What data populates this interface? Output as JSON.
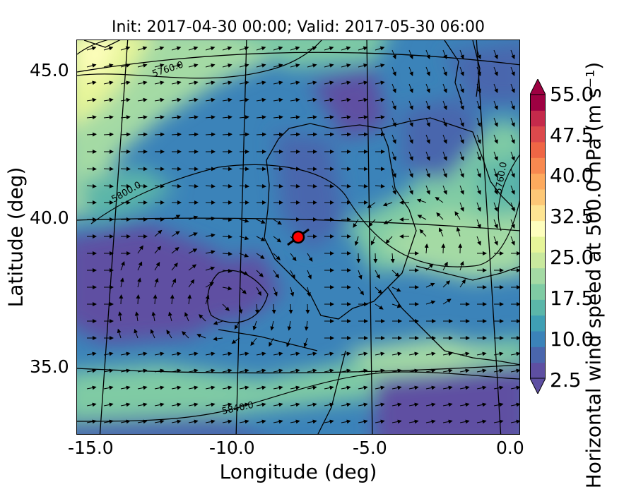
{
  "title": "Init: 2017-04-30 00:00; Valid: 2017-05-30 06:00",
  "xlabel": "Longitude (deg)",
  "ylabel": "Latitude (deg)",
  "x_ticks": [
    "-15.0",
    "-10.0",
    "-5.0",
    "0.0"
  ],
  "y_ticks": [
    "45.0",
    "40.0",
    "35.0"
  ],
  "colorbar": {
    "label": "Horizontal wind speed at 500.0 hPa (m s⁻¹)",
    "ticks": [
      "55.0",
      "47.5",
      "40.0",
      "32.5",
      "25.0",
      "17.5",
      "10.0",
      "2.5"
    ],
    "colors": [
      "#5e4fa2",
      "#4a66ad",
      "#3b83b9",
      "#3f9fb4",
      "#5bb6a9",
      "#7fcba4",
      "#a4daa4",
      "#c9e99e",
      "#e6f599",
      "#fefebd",
      "#fee593",
      "#fdc877",
      "#fdaa5e",
      "#f88950",
      "#ef6645",
      "#dc494c",
      "#c52a4b",
      "#9e0142"
    ]
  },
  "contour_labels": [
    "5760.0",
    "5800.0",
    "5840.0",
    "5760.0"
  ],
  "marker": {
    "lon": -7.7,
    "lat": 39.3,
    "color": "#ff0000"
  },
  "accent_colors": {
    "frame": "#000000",
    "coast": "#000000"
  }
}
